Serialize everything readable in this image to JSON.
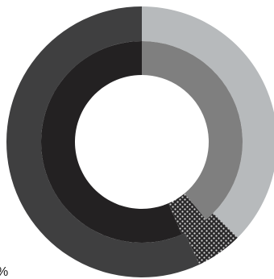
{
  "chart_data": {
    "type": "pie",
    "variant": "double-donut",
    "title": "",
    "start_angle_deg": 0,
    "direction": "clockwise",
    "rings": [
      {
        "ring": "outer",
        "segments": [
          {
            "value": 37.5,
            "color": "#b7babc",
            "pattern": "solid"
          },
          {
            "value": 5.5,
            "color": "#2e2d2e",
            "pattern": "dots"
          },
          {
            "value": 57.0,
            "color": "#3f3f40",
            "pattern": "solid"
          }
        ]
      },
      {
        "ring": "inner",
        "segments": [
          {
            "value": 39.0,
            "color": "#7f7f7f",
            "pattern": "solid"
          },
          {
            "value": 4.5,
            "color": "#2e2d2e",
            "pattern": "dots"
          },
          {
            "value": 56.5,
            "color": "#232122",
            "pattern": "solid"
          }
        ]
      }
    ]
  },
  "labels": {
    "fragment": "%"
  }
}
